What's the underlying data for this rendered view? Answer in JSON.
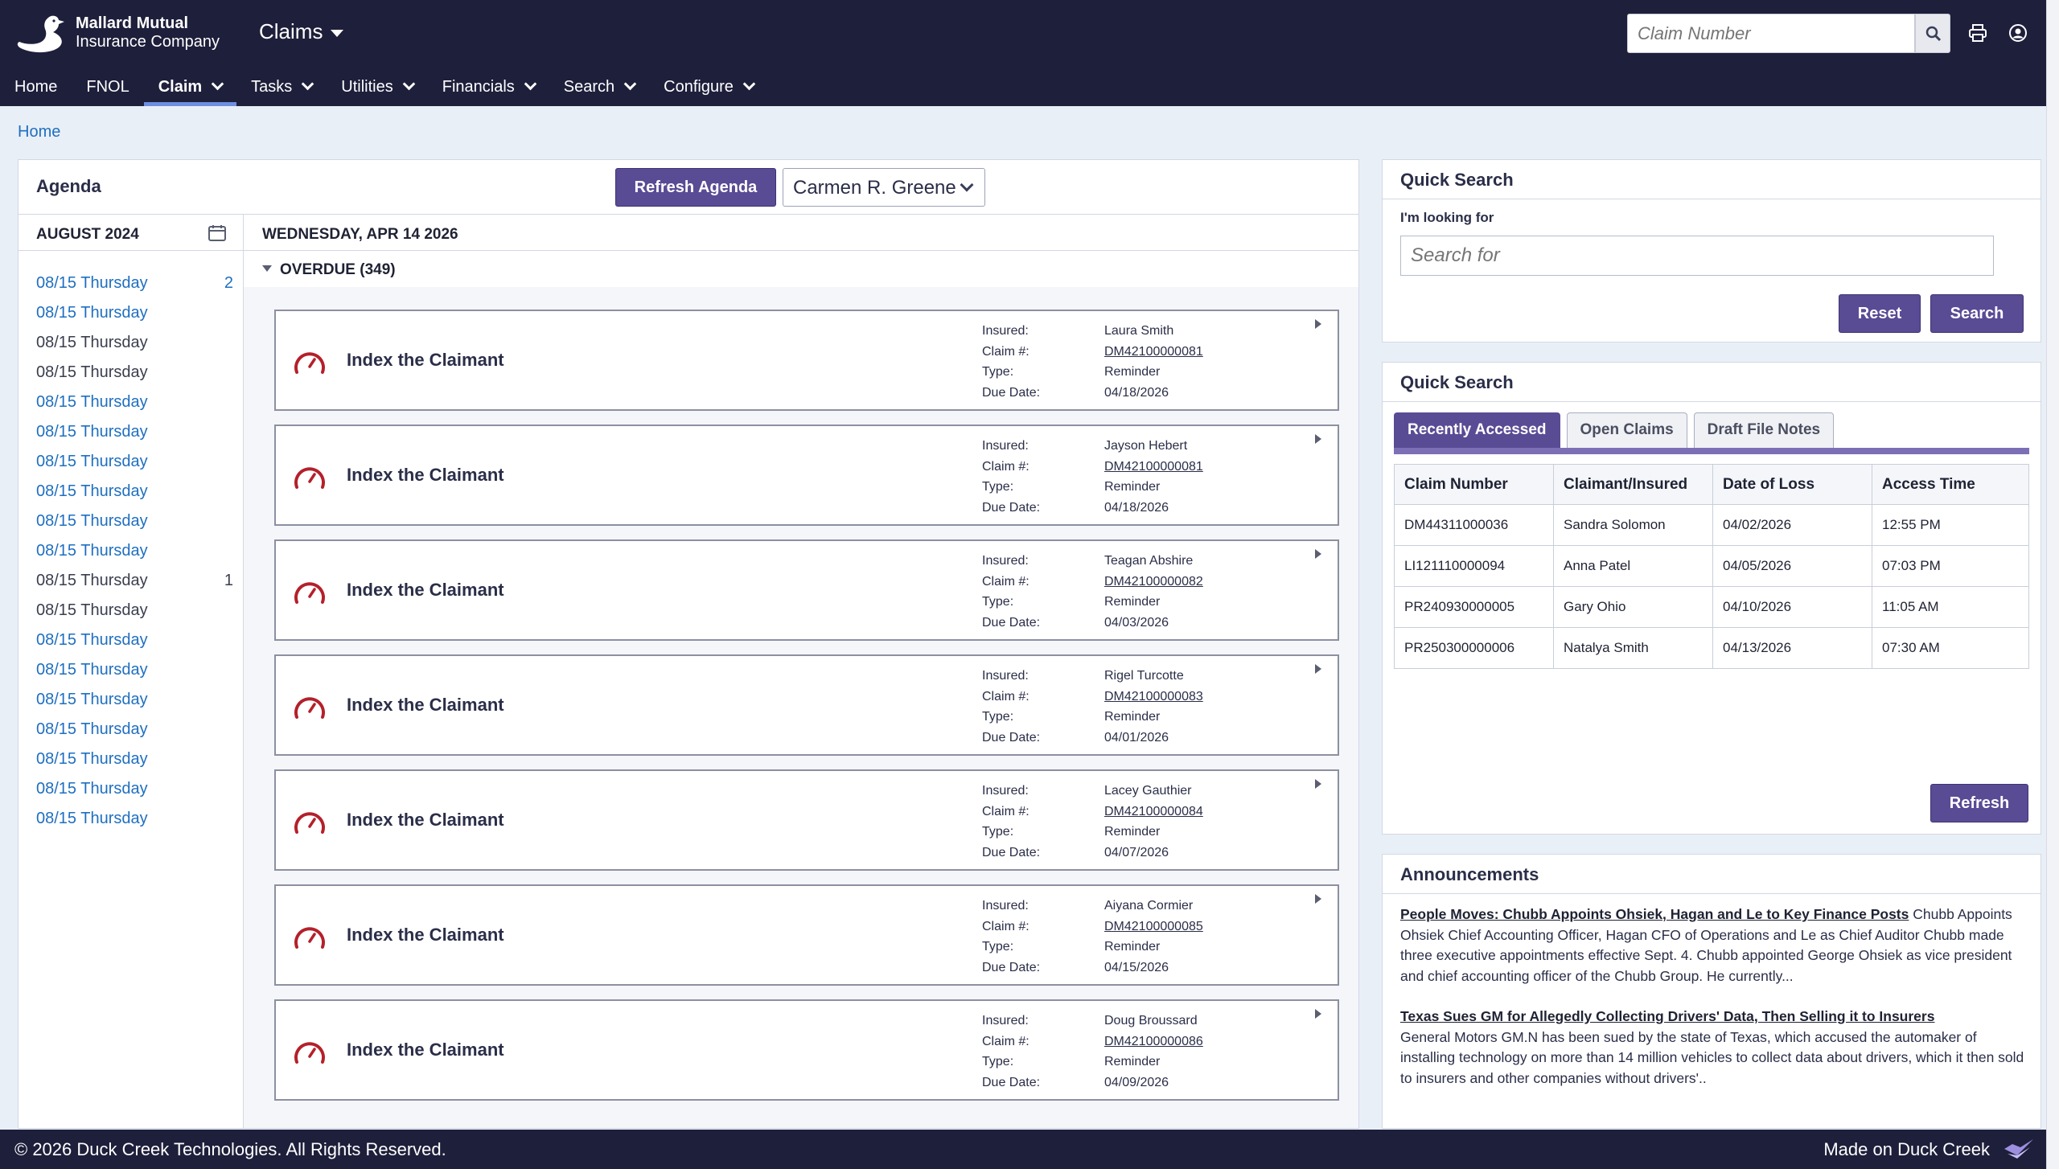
{
  "header": {
    "brand_line1": "Mallard Mutual",
    "brand_line2": "Insurance Company",
    "module": "Claims",
    "claim_number_placeholder": "Claim Number",
    "nav": [
      {
        "label": "Home",
        "dropdown": false,
        "active": false
      },
      {
        "label": "FNOL",
        "dropdown": false,
        "active": false
      },
      {
        "label": "Claim",
        "dropdown": true,
        "active": true
      },
      {
        "label": "Tasks",
        "dropdown": true,
        "active": false
      },
      {
        "label": "Utilities",
        "dropdown": true,
        "active": false
      },
      {
        "label": "Financials",
        "dropdown": true,
        "active": false
      },
      {
        "label": "Search",
        "dropdown": true,
        "active": false
      },
      {
        "label": "Configure",
        "dropdown": true,
        "active": false
      }
    ]
  },
  "breadcrumb": "Home",
  "agenda": {
    "title": "Agenda",
    "refresh_label": "Refresh Agenda",
    "user": "Carmen R. Greene",
    "month": "AUGUST 2024",
    "date_heading": "WEDNESDAY, APR 14 2026",
    "overdue_label": "OVERDUE (349)",
    "days": [
      {
        "label": "08/15 Thursday",
        "count": "2",
        "link": true
      },
      {
        "label": "08/15 Thursday",
        "count": "",
        "link": true
      },
      {
        "label": "08/15 Thursday",
        "count": "",
        "link": false
      },
      {
        "label": "08/15 Thursday",
        "count": "",
        "link": false
      },
      {
        "label": "08/15 Thursday",
        "count": "",
        "link": true
      },
      {
        "label": "08/15 Thursday",
        "count": "",
        "link": true
      },
      {
        "label": "08/15 Thursday",
        "count": "",
        "link": true
      },
      {
        "label": "08/15 Thursday",
        "count": "",
        "link": true
      },
      {
        "label": "08/15 Thursday",
        "count": "",
        "link": true
      },
      {
        "label": "08/15 Thursday",
        "count": "",
        "link": true
      },
      {
        "label": "08/15 Thursday",
        "count": "1",
        "link": false
      },
      {
        "label": "08/15 Thursday",
        "count": "",
        "link": false
      },
      {
        "label": "08/15 Thursday",
        "count": "",
        "link": true
      },
      {
        "label": "08/15 Thursday",
        "count": "",
        "link": true
      },
      {
        "label": "08/15 Thursday",
        "count": "",
        "link": true
      },
      {
        "label": "08/15 Thursday",
        "count": "",
        "link": true
      },
      {
        "label": "08/15 Thursday",
        "count": "",
        "link": true
      },
      {
        "label": "08/15 Thursday",
        "count": "",
        "link": true
      },
      {
        "label": "08/15 Thursday",
        "count": "",
        "link": true
      }
    ],
    "labels": {
      "insured": "Insured:",
      "claim": "Claim #:",
      "type": "Type:",
      "due": "Due Date:"
    },
    "tasks": [
      {
        "title": "Index the Claimant",
        "insured": "Laura Smith",
        "claim": "DM42100000081",
        "type": "Reminder",
        "due": "04/18/2026"
      },
      {
        "title": "Index the Claimant",
        "insured": "Jayson Hebert",
        "claim": "DM42100000081",
        "type": "Reminder",
        "due": "04/18/2026"
      },
      {
        "title": "Index the Claimant",
        "insured": "Teagan Abshire",
        "claim": "DM42100000082",
        "type": "Reminder",
        "due": "04/03/2026"
      },
      {
        "title": "Index the Claimant",
        "insured": "Rigel Turcotte",
        "claim": "DM42100000083",
        "type": "Reminder",
        "due": "04/01/2026"
      },
      {
        "title": "Index the Claimant",
        "insured": "Lacey Gauthier",
        "claim": "DM42100000084",
        "type": "Reminder",
        "due": "04/07/2026"
      },
      {
        "title": "Index the Claimant",
        "insured": "Aiyana Cormier",
        "claim": "DM42100000085",
        "type": "Reminder",
        "due": "04/15/2026"
      },
      {
        "title": "Index the Claimant",
        "insured": "Doug Broussard",
        "claim": "DM42100000086",
        "type": "Reminder",
        "due": "04/09/2026"
      }
    ]
  },
  "quick_search": {
    "title": "Quick Search",
    "looking_for_label": "I'm looking for",
    "search_placeholder": "Search for",
    "reset_label": "Reset",
    "search_label": "Search"
  },
  "recent": {
    "title": "Quick Search",
    "tabs": [
      "Recently Accessed",
      "Open Claims",
      "Draft File Notes"
    ],
    "columns": [
      "Claim Number",
      "Claimant/Insured",
      "Date of Loss",
      "Access Time"
    ],
    "rows": [
      [
        "DM44311000036",
        "Sandra Solomon",
        "04/02/2026",
        "12:55 PM"
      ],
      [
        "LI121110000094",
        "Anna Patel",
        "04/05/2026",
        "07:03 PM"
      ],
      [
        "PR240930000005",
        "Gary Ohio",
        "04/10/2026",
        "11:05 AM"
      ],
      [
        "PR250300000006",
        "Natalya Smith",
        "04/13/2026",
        "07:30 AM"
      ]
    ],
    "refresh_label": "Refresh"
  },
  "announcements": {
    "title": "Announcements",
    "items": [
      {
        "headline": "People Moves: Chubb Appoints Ohsiek, Hagan and Le to Key Finance Posts",
        "body": " Chubb Appoints Ohsiek Chief Accounting Officer, Hagan CFO of Operations and Le as Chief Auditor Chubb made three executive appointments effective Sept. 4. Chubb appointed George Ohsiek as vice president and chief accounting officer of the Chubb Group. He currently..."
      },
      {
        "headline": "Texas Sues GM for Allegedly Collecting Drivers' Data, Then Selling it to Insurers",
        "body": "General Motors GM.N has been sued by the state of Texas, which accused the automaker of installing technology on more than 14 million vehicles to collect data about drivers, which it then sold to insurers and other companies without drivers'.."
      }
    ]
  },
  "footer": {
    "copyright": "© 2026 Duck Creek Technologies. All Rights Reserved.",
    "made_on": "Made on Duck Creek"
  },
  "colors": {
    "header_bg": "#1e1f3b",
    "accent": "#5a4b95",
    "link": "#1f6fc0",
    "gauge": "#b4202a"
  }
}
